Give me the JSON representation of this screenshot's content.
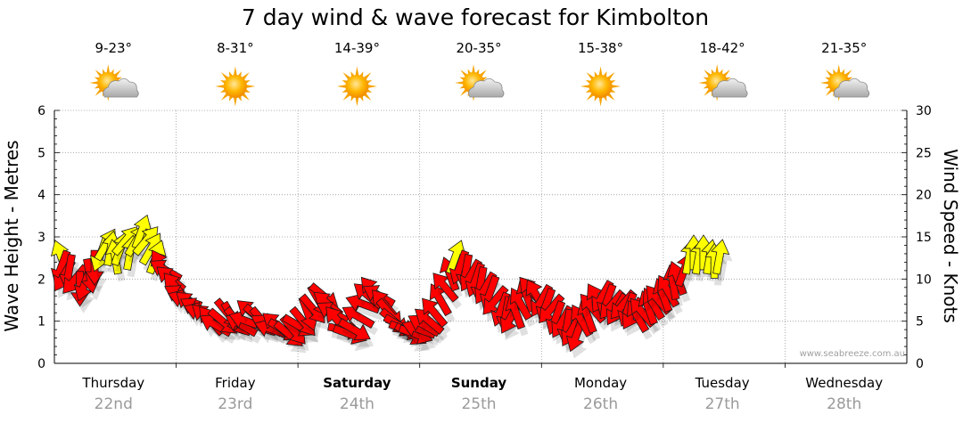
{
  "chart_data": {
    "type": "scatter",
    "title": "7 day wind & wave forecast for Kimbolton",
    "ylabel_left": "Wave Height - Metres",
    "ylabel_right": "Wind Speed - Knots",
    "ylim_left": [
      0,
      6
    ],
    "ylim_right": [
      0,
      30
    ],
    "yticks_left": [
      "0",
      "1",
      "2",
      "3",
      "4",
      "5",
      "6"
    ],
    "yticks_right": [
      "0",
      "5",
      "10",
      "15",
      "20",
      "25",
      "30"
    ],
    "grid": true,
    "credit": "www.seabreeze.com.au",
    "days": [
      {
        "name": "Thursday",
        "date": "22nd",
        "temp": "9-23°",
        "icon": "partly-cloudy-icon",
        "bold": false
      },
      {
        "name": "Friday",
        "date": "23rd",
        "temp": "8-31°",
        "icon": "sunny-icon",
        "bold": false
      },
      {
        "name": "Saturday",
        "date": "24th",
        "temp": "14-39°",
        "icon": "sunny-icon",
        "bold": true
      },
      {
        "name": "Sunday",
        "date": "25th",
        "temp": "20-35°",
        "icon": "partly-cloudy-icon",
        "bold": true
      },
      {
        "name": "Monday",
        "date": "26th",
        "temp": "15-38°",
        "icon": "sunny-icon",
        "bold": false
      },
      {
        "name": "Tuesday",
        "date": "27th",
        "temp": "18-42°",
        "icon": "partly-cloudy-icon",
        "bold": false
      },
      {
        "name": "Wednesday",
        "date": "28th",
        "temp": "21-35°",
        "icon": "partly-cloudy-icon",
        "bold": false
      }
    ],
    "wind_series": {
      "name": "",
      "x_unit": "days from start of Thursday 22nd",
      "points": [
        [
          0.0,
          12.5,
          340
        ],
        [
          0.04,
          11.5,
          200
        ],
        [
          0.08,
          10.5,
          210
        ],
        [
          0.12,
          11.0,
          190
        ],
        [
          0.17,
          10.0,
          220
        ],
        [
          0.21,
          9.0,
          180
        ],
        [
          0.25,
          9.5,
          200
        ],
        [
          0.29,
          10.5,
          170
        ],
        [
          0.33,
          11.5,
          180
        ],
        [
          0.38,
          13.0,
          200
        ],
        [
          0.42,
          14.0,
          30
        ],
        [
          0.46,
          13.5,
          10
        ],
        [
          0.5,
          12.5,
          350
        ],
        [
          0.54,
          13.5,
          20
        ],
        [
          0.58,
          14.5,
          40
        ],
        [
          0.62,
          13.0,
          10
        ],
        [
          0.67,
          14.5,
          30
        ],
        [
          0.71,
          15.5,
          20
        ],
        [
          0.75,
          14.5,
          40
        ],
        [
          0.79,
          13.5,
          30
        ],
        [
          0.83,
          12.5,
          20
        ],
        [
          0.88,
          11.5,
          330
        ],
        [
          0.92,
          11.0,
          300
        ],
        [
          0.96,
          10.0,
          310
        ],
        [
          1.0,
          9.0,
          320
        ],
        [
          1.04,
          8.0,
          300
        ],
        [
          1.08,
          7.5,
          290
        ],
        [
          1.12,
          7.0,
          310
        ],
        [
          1.17,
          6.5,
          300
        ],
        [
          1.21,
          6.0,
          290
        ],
        [
          1.25,
          5.5,
          310
        ],
        [
          1.29,
          5.0,
          320
        ],
        [
          1.33,
          4.5,
          300
        ],
        [
          1.38,
          5.0,
          130
        ],
        [
          1.42,
          6.0,
          140
        ],
        [
          1.46,
          5.5,
          150
        ],
        [
          1.5,
          5.0,
          140
        ],
        [
          1.54,
          4.5,
          300
        ],
        [
          1.58,
          5.0,
          290
        ],
        [
          1.62,
          6.0,
          310
        ],
        [
          1.67,
          5.5,
          130
        ],
        [
          1.71,
          5.0,
          140
        ],
        [
          1.75,
          4.5,
          300
        ],
        [
          1.79,
          4.0,
          290
        ],
        [
          1.83,
          4.5,
          310
        ],
        [
          1.88,
          4.0,
          120
        ],
        [
          1.92,
          3.5,
          130
        ],
        [
          1.96,
          4.0,
          140
        ],
        [
          2.0,
          4.5,
          120
        ],
        [
          2.04,
          5.0,
          140
        ],
        [
          2.08,
          6.0,
          160
        ],
        [
          2.12,
          6.5,
          140
        ],
        [
          2.17,
          7.5,
          150
        ],
        [
          2.21,
          8.0,
          130
        ],
        [
          2.25,
          7.0,
          310
        ],
        [
          2.29,
          6.0,
          300
        ],
        [
          2.33,
          5.0,
          320
        ],
        [
          2.38,
          4.0,
          100
        ],
        [
          2.42,
          3.5,
          110
        ],
        [
          2.46,
          4.0,
          120
        ],
        [
          2.5,
          5.5,
          300
        ],
        [
          2.54,
          7.0,
          290
        ],
        [
          2.58,
          8.0,
          310
        ],
        [
          2.62,
          8.5,
          320
        ],
        [
          2.67,
          8.0,
          300
        ],
        [
          2.71,
          7.0,
          320
        ],
        [
          2.75,
          6.0,
          140
        ],
        [
          2.79,
          5.0,
          130
        ],
        [
          2.83,
          4.5,
          120
        ],
        [
          2.88,
          4.0,
          110
        ],
        [
          2.92,
          3.5,
          120
        ],
        [
          2.96,
          3.5,
          110
        ],
        [
          3.0,
          4.0,
          290
        ],
        [
          3.04,
          4.5,
          300
        ],
        [
          3.08,
          5.0,
          310
        ],
        [
          3.12,
          6.0,
          320
        ],
        [
          3.17,
          7.5,
          330
        ],
        [
          3.21,
          9.0,
          320
        ],
        [
          3.25,
          10.5,
          340
        ],
        [
          3.29,
          12.5,
          20
        ],
        [
          3.33,
          11.5,
          200
        ],
        [
          3.38,
          11.0,
          190
        ],
        [
          3.42,
          10.5,
          210
        ],
        [
          3.46,
          10.0,
          200
        ],
        [
          3.5,
          9.5,
          190
        ],
        [
          3.54,
          9.0,
          210
        ],
        [
          3.58,
          8.5,
          200
        ],
        [
          3.62,
          7.5,
          220
        ],
        [
          3.67,
          6.5,
          200
        ],
        [
          3.71,
          6.0,
          190
        ],
        [
          3.75,
          5.5,
          210
        ],
        [
          3.79,
          6.0,
          340
        ],
        [
          3.83,
          7.0,
          330
        ],
        [
          3.88,
          8.0,
          340
        ],
        [
          3.92,
          8.5,
          320
        ],
        [
          3.96,
          8.0,
          330
        ],
        [
          4.0,
          7.5,
          210
        ],
        [
          4.04,
          7.0,
          200
        ],
        [
          4.08,
          6.5,
          220
        ],
        [
          4.12,
          5.5,
          200
        ],
        [
          4.17,
          5.0,
          210
        ],
        [
          4.21,
          4.5,
          190
        ],
        [
          4.25,
          4.0,
          210
        ],
        [
          4.29,
          3.5,
          200
        ],
        [
          4.33,
          5.0,
          330
        ],
        [
          4.38,
          5.5,
          340
        ],
        [
          4.42,
          6.5,
          320
        ],
        [
          4.46,
          7.5,
          330
        ],
        [
          4.5,
          8.0,
          210
        ],
        [
          4.54,
          7.5,
          200
        ],
        [
          4.58,
          7.0,
          220
        ],
        [
          4.62,
          6.5,
          210
        ],
        [
          4.67,
          7.0,
          220
        ],
        [
          4.71,
          6.5,
          200
        ],
        [
          4.75,
          6.0,
          210
        ],
        [
          4.79,
          5.5,
          330
        ],
        [
          4.83,
          6.0,
          320
        ],
        [
          4.88,
          6.5,
          340
        ],
        [
          4.92,
          7.0,
          330
        ],
        [
          4.96,
          7.5,
          320
        ],
        [
          5.0,
          8.0,
          340
        ],
        [
          5.04,
          8.5,
          330
        ],
        [
          5.08,
          9.5,
          350
        ],
        [
          5.12,
          10.0,
          340
        ],
        [
          5.17,
          11.0,
          20
        ],
        [
          5.21,
          12.5,
          10
        ],
        [
          5.25,
          13.0,
          0
        ],
        [
          5.29,
          12.5,
          10
        ],
        [
          5.33,
          13.0,
          0
        ],
        [
          5.38,
          12.5,
          10
        ],
        [
          5.42,
          12.0,
          0
        ],
        [
          5.46,
          12.5,
          10
        ]
      ]
    }
  }
}
